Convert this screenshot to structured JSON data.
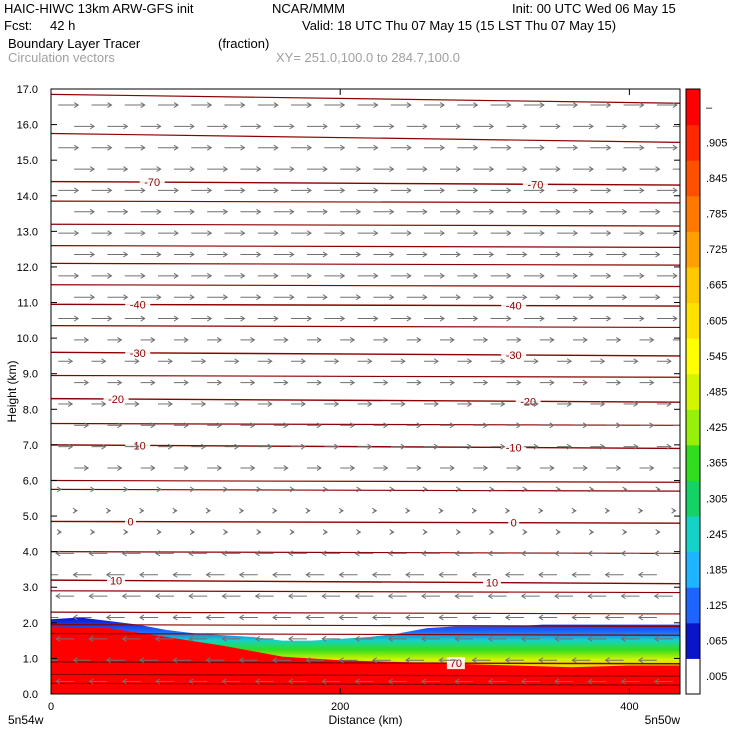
{
  "header": {
    "model": "HAIC-HIWC 13km ARW-GFS init",
    "org": "NCAR/MMM",
    "init": "Init: 00 UTC Wed 06 May 15",
    "fcst_label": "Fcst:",
    "fcst_value": "42 h",
    "valid": "Valid: 18 UTC Thu 07 May 15 (15 LST Thu 07 May 15)",
    "field": "Boundary Layer Tracer",
    "units": "(fraction)",
    "vectors": "Circulation vectors",
    "xy": "XY= 251.0,100.0 to 284.7,100.0"
  },
  "chart_data": {
    "type": "heatmap",
    "title": "Boundary Layer Tracer",
    "units": "fraction",
    "xlabel": "Distance (km)",
    "ylabel": "Height (km)",
    "xlim": [
      0,
      435
    ],
    "ylim": [
      0,
      17
    ],
    "x_ticks": [
      "0",
      "200",
      "400"
    ],
    "y_ticks": [
      "0.0",
      "1.0",
      "2.0",
      "3.0",
      "4.0",
      "5.0",
      "6.0",
      "7.0",
      "8.0",
      "9.0",
      "10.0",
      "11.0",
      "12.0",
      "13.0",
      "14.0",
      "15.0",
      "16.0",
      "17.0"
    ],
    "x_end_labels": {
      "left": "5n54w",
      "right": "5n50w"
    },
    "colorbar": {
      "labels": [
        ".005",
        ".065",
        ".125",
        ".185",
        ".245",
        ".305",
        ".365",
        ".425",
        ".485",
        ".545",
        ".605",
        ".665",
        ".725",
        ".785",
        ".845",
        ".905",
        "–"
      ],
      "colors": [
        "#ffffff",
        "#0a14c8",
        "#1e64ff",
        "#1eb4ff",
        "#14d2c8",
        "#14d264",
        "#32dc1e",
        "#96f00a",
        "#d2f500",
        "#ffff00",
        "#ffe100",
        "#ffc800",
        "#ffa000",
        "#ff7800",
        "#ff5000",
        "#ff2800",
        "#ff0000"
      ]
    },
    "tracer_top_km": [
      {
        "x": 0,
        "top": 2.1
      },
      {
        "x": 20,
        "top": 2.15
      },
      {
        "x": 40,
        "top": 2.05
      },
      {
        "x": 60,
        "top": 1.95
      },
      {
        "x": 80,
        "top": 1.8
      },
      {
        "x": 100,
        "top": 1.7
      },
      {
        "x": 120,
        "top": 1.65
      },
      {
        "x": 140,
        "top": 1.6
      },
      {
        "x": 160,
        "top": 1.5
      },
      {
        "x": 180,
        "top": 1.5
      },
      {
        "x": 200,
        "top": 1.55
      },
      {
        "x": 220,
        "top": 1.6
      },
      {
        "x": 240,
        "top": 1.7
      },
      {
        "x": 260,
        "top": 1.85
      },
      {
        "x": 280,
        "top": 1.9
      },
      {
        "x": 300,
        "top": 1.9
      },
      {
        "x": 320,
        "top": 1.9
      },
      {
        "x": 340,
        "top": 1.95
      },
      {
        "x": 360,
        "top": 1.95
      },
      {
        "x": 380,
        "top": 1.95
      },
      {
        "x": 400,
        "top": 1.95
      },
      {
        "x": 420,
        "top": 1.95
      },
      {
        "x": 435,
        "top": 1.95
      }
    ],
    "red_top_km": [
      {
        "x": 0,
        "top": 1.9
      },
      {
        "x": 40,
        "top": 1.85
      },
      {
        "x": 80,
        "top": 1.6
      },
      {
        "x": 120,
        "top": 1.35
      },
      {
        "x": 160,
        "top": 1.05
      },
      {
        "x": 200,
        "top": 0.95
      },
      {
        "x": 240,
        "top": 0.9
      },
      {
        "x": 280,
        "top": 0.85
      },
      {
        "x": 320,
        "top": 0.8
      },
      {
        "x": 360,
        "top": 0.75
      },
      {
        "x": 400,
        "top": 0.8
      },
      {
        "x": 435,
        "top": 0.8
      }
    ],
    "isotherms": [
      {
        "label": "-70",
        "y_left": 14.4,
        "y_right": 14.3,
        "label_x": [
          70,
          335
        ]
      },
      {
        "label": "-40",
        "y_left": 10.95,
        "y_right": 10.9,
        "label_x": [
          60,
          320
        ]
      },
      {
        "label": "-30",
        "y_left": 9.6,
        "y_right": 9.5,
        "label_x": [
          60,
          320
        ]
      },
      {
        "label": "-20",
        "y_left": 8.3,
        "y_right": 8.2,
        "label_x": [
          45,
          330
        ]
      },
      {
        "label": "-10",
        "y_left": 7.0,
        "y_right": 6.9,
        "label_x": [
          60,
          320
        ]
      },
      {
        "label": "0",
        "y_left": 4.85,
        "y_right": 4.8,
        "label_x": [
          55,
          320
        ]
      },
      {
        "label": "10",
        "y_left": 3.2,
        "y_right": 3.1,
        "label_x": [
          45,
          305
        ]
      },
      {
        "label": "70",
        "y_left": 0.9,
        "y_right": 0.85,
        "label_x": [
          280
        ]
      }
    ],
    "unlabeled_contours_km": [
      16.85,
      15.75,
      13.85,
      13.2,
      12.6,
      12.1,
      11.5,
      10.35,
      8.95,
      7.6,
      6.0,
      5.75,
      4.0,
      2.9,
      2.3,
      1.95,
      1.7,
      0.55,
      0.3
    ]
  }
}
